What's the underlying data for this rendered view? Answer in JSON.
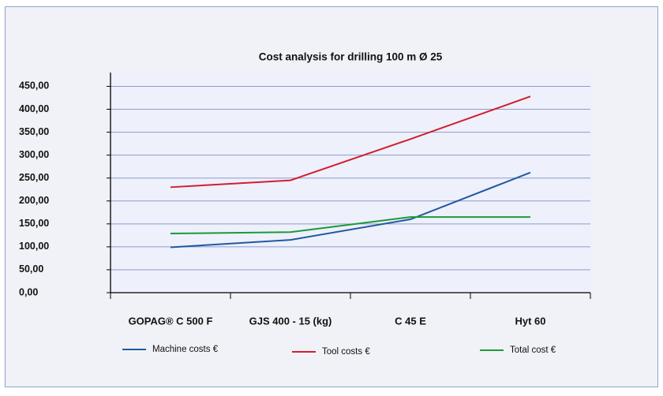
{
  "chart_data": {
    "type": "line",
    "title": "Cost analysis for drilling 100 m Ø 25",
    "categories": [
      "GOPAG® C 500 F",
      "GJS 400 - 15 (kg)",
      "C 45 E",
      "Hyt 60"
    ],
    "series": [
      {
        "name": "Machine costs €",
        "color": "#1f5aa0",
        "values": [
          99,
          115,
          160,
          262
        ]
      },
      {
        "name": "Tool costs €",
        "color": "#d0202e",
        "values": [
          230,
          245,
          335,
          428
        ]
      },
      {
        "name": "Total cost €",
        "color": "#1a9a3a",
        "values": [
          129,
          132,
          165,
          165
        ]
      }
    ],
    "ylim": [
      0,
      480
    ],
    "yticks": [
      {
        "value": 0,
        "label": "0,00"
      },
      {
        "value": 50,
        "label": "50,00"
      },
      {
        "value": 100,
        "label": "100,00"
      },
      {
        "value": 150,
        "label": "150,00"
      },
      {
        "value": 200,
        "label": "200,00"
      },
      {
        "value": 250,
        "label": "250,00"
      },
      {
        "value": 300,
        "label": "300,00"
      },
      {
        "value": 350,
        "label": "350,00"
      },
      {
        "value": 400,
        "label": "400,00"
      },
      {
        "value": 450,
        "label": "450,00"
      }
    ],
    "grid": true
  }
}
